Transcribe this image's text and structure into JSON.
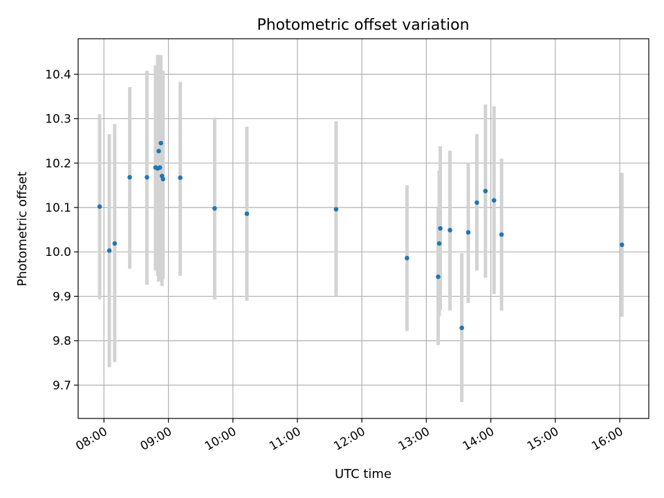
{
  "chart_data": {
    "type": "scatter",
    "title": "Photometric offset variation",
    "xlabel": "UTC time",
    "ylabel": "Photometric offset",
    "x_tick_labels": [
      "08:00",
      "09:00",
      "10:00",
      "11:00",
      "12:00",
      "13:00",
      "14:00",
      "15:00",
      "16:00"
    ],
    "x_tick_values_hours": [
      8,
      9,
      10,
      11,
      12,
      13,
      14,
      15,
      16
    ],
    "y_tick_labels": [
      "9.7",
      "9.8",
      "9.9",
      "10.0",
      "10.1",
      "10.2",
      "10.3",
      "10.4"
    ],
    "y_tick_values": [
      9.7,
      9.8,
      9.9,
      10.0,
      10.1,
      10.2,
      10.3,
      10.4
    ],
    "xlim_hours": [
      7.6,
      16.45
    ],
    "ylim": [
      9.625,
      10.48
    ],
    "grid": true,
    "marker_color": "#1f77b4",
    "errorbar_color": "#d3d3d3",
    "points": [
      {
        "t": "07:56",
        "y": 10.102,
        "lo": 9.893,
        "hi": 10.31
      },
      {
        "t": "08:05",
        "y": 10.003,
        "lo": 9.74,
        "hi": 10.265
      },
      {
        "t": "08:10",
        "y": 10.019,
        "lo": 9.752,
        "hi": 10.288
      },
      {
        "t": "08:24",
        "y": 10.168,
        "lo": 9.962,
        "hi": 10.371
      },
      {
        "t": "08:40",
        "y": 10.168,
        "lo": 9.926,
        "hi": 10.408
      },
      {
        "t": "08:48",
        "y": 10.19,
        "lo": 9.958,
        "hi": 10.42
      },
      {
        "t": "08:50",
        "y": 10.188,
        "lo": 9.946,
        "hi": 10.444
      },
      {
        "t": "08:51",
        "y": 10.227,
        "lo": 9.933,
        "hi": 10.443
      },
      {
        "t": "08:52",
        "y": 10.19,
        "lo": 9.938,
        "hi": 10.443
      },
      {
        "t": "08:53",
        "y": 10.245,
        "lo": 9.946,
        "hi": 10.443
      },
      {
        "t": "08:54",
        "y": 10.171,
        "lo": 9.923,
        "hi": 10.408
      },
      {
        "t": "08:55",
        "y": 10.164,
        "lo": 9.939,
        "hi": 10.408
      },
      {
        "t": "09:11",
        "y": 10.167,
        "lo": 9.946,
        "hi": 10.383
      },
      {
        "t": "09:43",
        "y": 10.098,
        "lo": 9.893,
        "hi": 10.302
      },
      {
        "t": "10:13",
        "y": 10.086,
        "lo": 9.89,
        "hi": 10.282
      },
      {
        "t": "11:36",
        "y": 10.096,
        "lo": 9.9,
        "hi": 10.294
      },
      {
        "t": "12:42",
        "y": 9.986,
        "lo": 9.822,
        "hi": 10.15
      },
      {
        "t": "13:11",
        "y": 9.944,
        "lo": 9.79,
        "hi": 10.099
      },
      {
        "t": "13:12",
        "y": 10.019,
        "lo": 9.855,
        "hi": 10.183
      },
      {
        "t": "13:13",
        "y": 10.053,
        "lo": 9.869,
        "hi": 10.238
      },
      {
        "t": "13:22",
        "y": 10.049,
        "lo": 9.868,
        "hi": 10.228
      },
      {
        "t": "13:33",
        "y": 9.829,
        "lo": 9.662,
        "hi": 9.997
      },
      {
        "t": "13:39",
        "y": 10.044,
        "lo": 9.885,
        "hi": 10.2
      },
      {
        "t": "13:47",
        "y": 10.111,
        "lo": 9.958,
        "hi": 10.265
      },
      {
        "t": "13:55",
        "y": 10.137,
        "lo": 9.942,
        "hi": 10.332
      },
      {
        "t": "14:03",
        "y": 10.116,
        "lo": 9.905,
        "hi": 10.328
      },
      {
        "t": "14:10",
        "y": 10.039,
        "lo": 9.868,
        "hi": 10.21
      },
      {
        "t": "16:02",
        "y": 10.016,
        "lo": 9.854,
        "hi": 10.178
      }
    ]
  }
}
